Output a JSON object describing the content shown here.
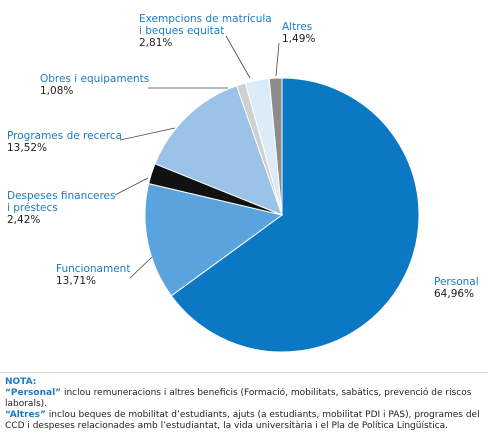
{
  "chart_data": {
    "type": "pie",
    "slices": [
      {
        "name": "Personal",
        "value": 64.96,
        "label": "64,96%",
        "color": "#0a78c2"
      },
      {
        "name": "Funcionament",
        "value": 13.71,
        "label": "13,71%",
        "color": "#5ba3dc"
      },
      {
        "name": "Despeses financeres i préstecs",
        "value": 2.42,
        "label": "2,42%",
        "color": "#111111"
      },
      {
        "name": "Programes de recerca",
        "value": 13.52,
        "label": "13,52%",
        "color": "#9bc3e8"
      },
      {
        "name": "Obres i equipaments",
        "value": 1.08,
        "label": "1,08%",
        "color": "#d0d0d0"
      },
      {
        "name": "Exempcions de matrícula i beques equitat",
        "value": 2.81,
        "label": "2,81%",
        "color": "#dcebf8"
      },
      {
        "name": "Altres",
        "value": 1.49,
        "label": "1,49%",
        "color": "#8c8c8c"
      }
    ],
    "label_lines": [
      [
        "Personal"
      ],
      [
        "Funcionament"
      ],
      [
        "Despeses financeres",
        "i préstecs"
      ],
      [
        "Programes de recerca"
      ],
      [
        "Obres i equipaments"
      ],
      [
        "Exempcions de matrícula",
        "i beques equitat"
      ],
      [
        "Altres"
      ]
    ],
    "label_color": "#1a7bc4"
  },
  "note": {
    "heading": "NOTA:",
    "line1_term": "“Personal”",
    "line1_text": " inclou remuneracions i altres beneficis (Formació, mobilitats, sabàtics, prevenció de riscos laborals).",
    "line2_term": "“Altres”",
    "line2_text": " inclou beques de mobilitat d’estudiants, ajuts (a estudiants, mobilitat PDI i PAS), programes del CCD i despeses relacionades amb l’estudiantat, la vida universitària i el Pla de Política Lingüística."
  }
}
